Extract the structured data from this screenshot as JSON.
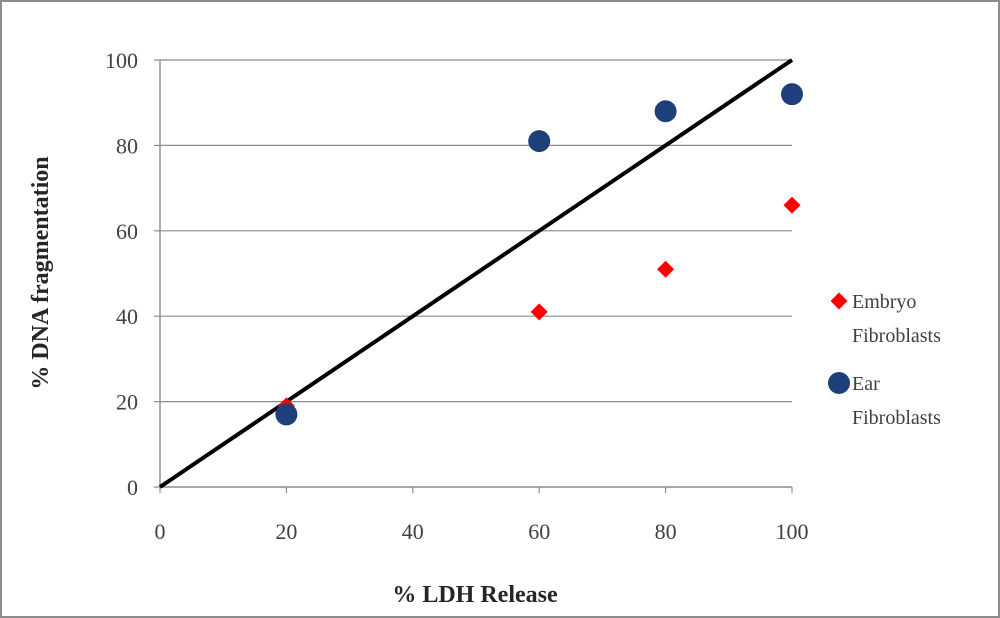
{
  "chart_data": {
    "type": "scatter",
    "xlabel": "% LDH Release",
    "ylabel": "% DNA fragmentation",
    "xlim": [
      0,
      100
    ],
    "ylim": [
      0,
      100
    ],
    "x_ticks": [
      "0",
      "20",
      "40",
      "60",
      "80",
      "100"
    ],
    "y_ticks": [
      "0",
      "20",
      "40",
      "60",
      "80",
      "100"
    ],
    "grid": "horizontal",
    "legend_position": "right",
    "reference_line": {
      "from": [
        0,
        0
      ],
      "to": [
        100,
        100
      ],
      "color": "#000000"
    },
    "series": [
      {
        "name": "Embryo Fibroblasts",
        "legend_lines": [
          "Embryo",
          "Fibroblasts"
        ],
        "marker": "diamond",
        "color": "#ff0000",
        "points": [
          [
            20,
            19
          ],
          [
            60,
            41
          ],
          [
            80,
            51
          ],
          [
            100,
            66
          ]
        ]
      },
      {
        "name": "Ear Fibroblasts",
        "legend_lines": [
          "Ear",
          "Fibroblasts"
        ],
        "marker": "circle",
        "color": "#1f3f7a",
        "points": [
          [
            20,
            17
          ],
          [
            60,
            81
          ],
          [
            80,
            88
          ],
          [
            100,
            92
          ]
        ]
      }
    ]
  }
}
